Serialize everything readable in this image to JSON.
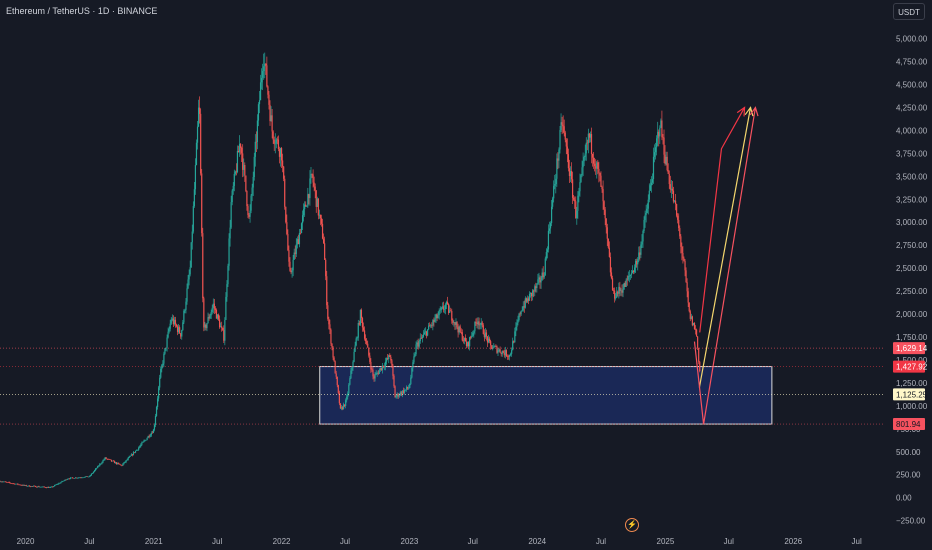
{
  "header": {
    "title": "Ethereum / TetherUS · 1D · BINANCE",
    "currency": "USDT"
  },
  "colors": {
    "background": "#161a25",
    "grid": "#1f2330",
    "candle_up": "#26a69a",
    "candle_down": "#ef5350",
    "zone_fill": "#1b2a5c",
    "zone_border": "#d9d9d9",
    "arrow_red": "#f23645",
    "arrow_yellow": "#f5d76e",
    "arrow_pink": "#f7525f"
  },
  "chart_data": {
    "type": "candlestick",
    "title": "Ethereum / TetherUS · 1D · BINANCE",
    "xlabel": "",
    "ylabel": "",
    "y_ticks": [
      "5,000.00",
      "4,750.00",
      "4,500.00",
      "4,250.00",
      "4,000.00",
      "3,750.00",
      "3,500.00",
      "3,250.00",
      "3,000.00",
      "2,750.00",
      "2,500.00",
      "2,250.00",
      "2,000.00",
      "1,750.00",
      "1,500.00",
      "1,250.00",
      "1,000.00",
      "750.00",
      "500.00",
      "250.00",
      "0.00",
      "−250.00"
    ],
    "y_tick_values": [
      5000,
      4750,
      4500,
      4250,
      4000,
      3750,
      3500,
      3250,
      3000,
      2750,
      2500,
      2250,
      2000,
      1750,
      1500,
      1250,
      1000,
      750,
      500,
      250,
      0,
      -250
    ],
    "x_ticks": [
      "2020",
      "Jul",
      "2021",
      "Jul",
      "2022",
      "Jul",
      "2023",
      "Jul",
      "2024",
      "Jul",
      "2025",
      "Jul",
      "2026",
      "Jul"
    ],
    "x_tick_dates": [
      "2020-01-01",
      "2020-07-01",
      "2021-01-01",
      "2021-07-01",
      "2022-01-01",
      "2022-07-01",
      "2023-01-01",
      "2023-07-01",
      "2024-01-01",
      "2024-07-01",
      "2025-01-01",
      "2025-07-01",
      "2026-01-01",
      "2026-07-01"
    ],
    "ylim": [
      -330,
      5420
    ],
    "xlim": [
      "2019-10-20",
      "2026-09-20"
    ],
    "grid": false,
    "price_path": [
      [
        "2019-10-20",
        180
      ],
      [
        "2020-01-01",
        130
      ],
      [
        "2020-03-13",
        110
      ],
      [
        "2020-05-01",
        210
      ],
      [
        "2020-07-01",
        230
      ],
      [
        "2020-08-15",
        430
      ],
      [
        "2020-10-01",
        350
      ],
      [
        "2020-11-20",
        550
      ],
      [
        "2021-01-01",
        740
      ],
      [
        "2021-01-20",
        1350
      ],
      [
        "2021-02-20",
        1950
      ],
      [
        "2021-03-20",
        1780
      ],
      [
        "2021-04-15",
        2500
      ],
      [
        "2021-05-11",
        4350
      ],
      [
        "2021-05-23",
        1800
      ],
      [
        "2021-06-20",
        2100
      ],
      [
        "2021-07-20",
        1750
      ],
      [
        "2021-08-10",
        3200
      ],
      [
        "2021-09-05",
        3900
      ],
      [
        "2021-10-01",
        3000
      ],
      [
        "2021-11-10",
        4850
      ],
      [
        "2021-12-05",
        4000
      ],
      [
        "2022-01-01",
        3750
      ],
      [
        "2022-01-24",
        2400
      ],
      [
        "2022-03-29",
        3500
      ],
      [
        "2022-05-01",
        2800
      ],
      [
        "2022-05-12",
        2000
      ],
      [
        "2022-06-18",
        950
      ],
      [
        "2022-07-05",
        1050
      ],
      [
        "2022-08-14",
        2000
      ],
      [
        "2022-09-20",
        1300
      ],
      [
        "2022-11-08",
        1550
      ],
      [
        "2022-11-21",
        1100
      ],
      [
        "2022-12-31",
        1200
      ],
      [
        "2023-01-20",
        1650
      ],
      [
        "2023-04-15",
        2100
      ],
      [
        "2023-06-15",
        1650
      ],
      [
        "2023-07-15",
        1950
      ],
      [
        "2023-08-20",
        1650
      ],
      [
        "2023-10-15",
        1550
      ],
      [
        "2023-11-15",
        2050
      ],
      [
        "2023-12-31",
        2300
      ],
      [
        "2024-01-20",
        2450
      ],
      [
        "2024-03-12",
        4100
      ],
      [
        "2024-04-20",
        3100
      ],
      [
        "2024-05-27",
        3950
      ],
      [
        "2024-07-01",
        3400
      ],
      [
        "2024-08-05",
        2200
      ],
      [
        "2024-09-06",
        2300
      ],
      [
        "2024-10-15",
        2600
      ],
      [
        "2024-11-12",
        3200
      ],
      [
        "2024-12-16",
        4100
      ],
      [
        "2025-01-05",
        3600
      ],
      [
        "2025-02-01",
        3100
      ],
      [
        "2025-02-24",
        2500
      ],
      [
        "2025-03-10",
        2000
      ],
      [
        "2025-03-30",
        1800
      ],
      [
        "2025-04-09",
        1380
      ]
    ],
    "levels": [
      {
        "label": "1,629.14",
        "value": 1629.14,
        "color": "#f7525f",
        "text_color": "#ffffff",
        "line": "dotted"
      },
      {
        "label": "1,427.92",
        "value": 1427.92,
        "color": "#f23645",
        "text_color": "#ffffff",
        "line": "dotted"
      },
      {
        "label": "1,125.25",
        "value": 1125.25,
        "color": "#fff7c9",
        "text_color": "#131722",
        "line": "dotted"
      },
      {
        "label": "801.94",
        "value": 801.94,
        "color": "#f7525f",
        "text_color": "#131722",
        "line": "dotted"
      }
    ],
    "zone": {
      "x_start": "2022-04-20",
      "x_end": "2025-11-01",
      "y_top": 1427.92,
      "y_bottom": 801.94
    },
    "projection_paths": [
      {
        "color": "#f23645",
        "points": [
          [
            "2025-04-09",
            1800
          ],
          [
            "2025-06-10",
            3800
          ],
          [
            "2025-08-15",
            4250
          ]
        ]
      },
      {
        "color": "#f5d76e",
        "points": [
          [
            "2025-04-08",
            1200
          ],
          [
            "2025-09-01",
            4250
          ]
        ]
      },
      {
        "color": "#f7525f",
        "points": [
          [
            "2025-03-25",
            1700
          ],
          [
            "2025-04-20",
            800
          ],
          [
            "2025-09-15",
            4250
          ]
        ]
      }
    ]
  }
}
